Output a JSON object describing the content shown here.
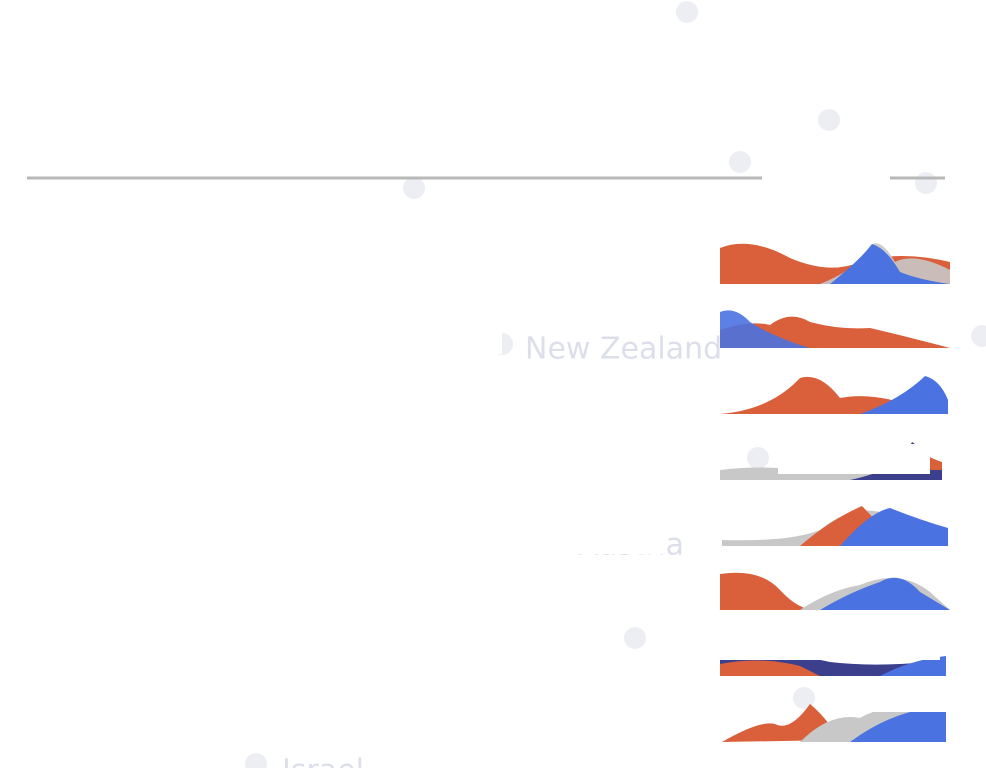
{
  "background_labels": [
    "New Zealand",
    "Austria",
    "Israel"
  ]
}
